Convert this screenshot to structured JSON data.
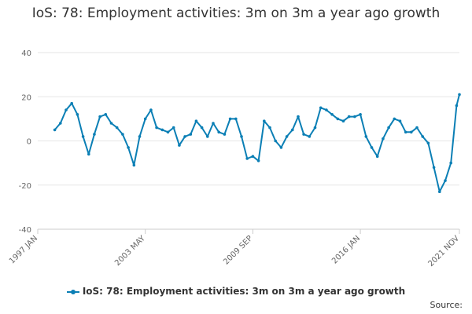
{
  "chart_data": {
    "type": "line",
    "title": "IoS: 78: Employment activities: 3m on 3m a year ago growth",
    "xlabel": "",
    "ylabel": "",
    "ylim": [
      -40,
      40
    ],
    "y_ticks": [
      -40,
      -20,
      0,
      20,
      40
    ],
    "x_ticks": [
      "1997 JAN",
      "2003 MAY",
      "2009 SEP",
      "2016 JAN",
      "2021 NOV"
    ],
    "grid": "horizontal",
    "legend_position": "bottom",
    "series": [
      {
        "name": "IoS: 78: Employment activities: 3m on 3m a year ago growth",
        "color": "#0b7fb5",
        "x": [
          "1998 JAN",
          "1998 MAY",
          "1998 SEP",
          "1999 JAN",
          "1999 MAY",
          "1999 SEP",
          "2000 JAN",
          "2000 MAY",
          "2000 SEP",
          "2001 JAN",
          "2001 MAY",
          "2001 SEP",
          "2002 JAN",
          "2002 MAY",
          "2002 SEP",
          "2003 JAN",
          "2003 MAY",
          "2003 SEP",
          "2004 JAN",
          "2004 MAY",
          "2004 SEP",
          "2005 JAN",
          "2005 MAY",
          "2005 SEP",
          "2006 JAN",
          "2006 MAY",
          "2006 SEP",
          "2007 JAN",
          "2007 MAY",
          "2007 SEP",
          "2008 JAN",
          "2008 MAY",
          "2008 SEP",
          "2009 JAN",
          "2009 MAY",
          "2009 SEP",
          "2010 JAN",
          "2010 MAY",
          "2010 SEP",
          "2011 JAN",
          "2011 MAY",
          "2011 SEP",
          "2012 JAN",
          "2012 MAY",
          "2012 SEP",
          "2013 JAN",
          "2013 MAY",
          "2013 SEP",
          "2014 JAN",
          "2014 MAY",
          "2014 SEP",
          "2015 JAN",
          "2015 MAY",
          "2015 SEP",
          "2016 JAN",
          "2016 MAY",
          "2016 SEP",
          "2017 JAN",
          "2017 MAY",
          "2017 SEP",
          "2018 JAN",
          "2018 MAY",
          "2018 SEP",
          "2019 JAN",
          "2019 MAY",
          "2019 SEP",
          "2020 JAN",
          "2020 MAY",
          "2020 SEP",
          "2021 JAN",
          "2021 MAY",
          "2021 SEP",
          "2021 NOV"
        ],
        "values": [
          5,
          8,
          14,
          17,
          12,
          2,
          -6,
          3,
          11,
          12,
          8,
          6,
          3,
          -3,
          -11,
          2,
          10,
          14,
          6,
          5,
          4,
          6,
          -2,
          2,
          3,
          9,
          6,
          2,
          8,
          4,
          3,
          10,
          10,
          2,
          -8,
          -7,
          -9,
          9,
          6,
          0,
          -3,
          2,
          5,
          11,
          3,
          2,
          6,
          15,
          14,
          12,
          10,
          9,
          11,
          11,
          12,
          2,
          -3,
          -7,
          1,
          6,
          10,
          9,
          4,
          4,
          6,
          2,
          -1,
          -12,
          -23,
          -18,
          -10,
          16,
          21
        ]
      }
    ]
  },
  "legend": {
    "label": "IoS: 78: Employment activities: 3m on 3m a year ago growth"
  },
  "source_label": "Source:"
}
